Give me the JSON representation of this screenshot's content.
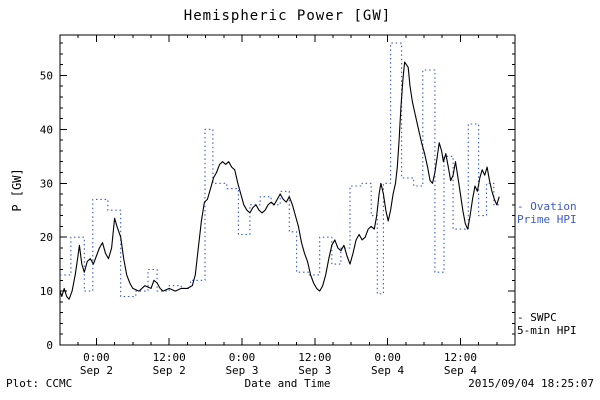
{
  "footer": {
    "plot_credit": "Plot: CCMC",
    "timestamp": "2015/09/04 18:25:07"
  },
  "chart_data": {
    "type": "line",
    "title": "Hemispheric Power [GW]",
    "xlabel": "Date and Time",
    "ylabel": "P [GW]",
    "x_unit": "hours since 2015-09-01 18:00 UT",
    "xlim": [
      0,
      75
    ],
    "ylim": [
      0,
      57.5
    ],
    "grid": false,
    "y_ticks": [
      0,
      10,
      20,
      30,
      40,
      50
    ],
    "y_minor": 2,
    "x_minor": 3,
    "x_ticks": [
      {
        "t": 6,
        "line1": "0:00",
        "line2": "Sep 2"
      },
      {
        "t": 18,
        "line1": "12:00",
        "line2": "Sep 2"
      },
      {
        "t": 30,
        "line1": "0:00",
        "line2": "Sep 3"
      },
      {
        "t": 42,
        "line1": "12:00",
        "line2": "Sep 3"
      },
      {
        "t": 54,
        "line1": "0:00",
        "line2": "Sep 4"
      },
      {
        "t": 66,
        "line1": "12:00",
        "line2": "Sep 4"
      }
    ],
    "legend": [
      {
        "line1": "- Ovation",
        "line2": "Prime HPI",
        "color": "#3b5bc8",
        "position": "right-middle"
      },
      {
        "line1": "- SWPC",
        "line2": "5-min HPI",
        "color": "#000000",
        "position": "right-bottom"
      }
    ],
    "series": [
      {
        "id": "ovation-prime-hpi",
        "name": "Ovation Prime HPI",
        "color": "#3b5bc8",
        "style": "dotted",
        "step": true,
        "dash": "1.5 2.8",
        "points": [
          [
            0,
            13
          ],
          [
            1.8,
            20
          ],
          [
            4,
            10
          ],
          [
            5.4,
            27
          ],
          [
            7.9,
            25
          ],
          [
            10,
            9
          ],
          [
            12.5,
            10
          ],
          [
            14.5,
            14
          ],
          [
            16,
            10
          ],
          [
            18,
            11
          ],
          [
            20,
            10.5
          ],
          [
            21.5,
            12
          ],
          [
            23.9,
            40
          ],
          [
            25.2,
            30
          ],
          [
            27.5,
            29
          ],
          [
            29.4,
            20.5
          ],
          [
            31.3,
            26
          ],
          [
            33,
            27.5
          ],
          [
            34.8,
            26
          ],
          [
            36.3,
            28.5
          ],
          [
            37.8,
            21
          ],
          [
            39,
            13.5
          ],
          [
            41,
            13
          ],
          [
            42.8,
            20
          ],
          [
            44.8,
            15
          ],
          [
            46.3,
            18
          ],
          [
            47.8,
            29.5
          ],
          [
            49.8,
            30
          ],
          [
            51.3,
            24
          ],
          [
            52.3,
            9.5
          ],
          [
            53.3,
            30
          ],
          [
            54.5,
            56
          ],
          [
            56.3,
            31
          ],
          [
            58.3,
            29.5
          ],
          [
            59.8,
            51
          ],
          [
            61.8,
            13.5
          ],
          [
            63.3,
            35
          ],
          [
            64.8,
            21.5
          ],
          [
            67.3,
            41
          ],
          [
            69,
            24
          ],
          [
            70.3,
            30
          ],
          [
            71.5,
            26
          ],
          [
            72.4,
            26
          ]
        ]
      },
      {
        "id": "swpc-5min-hpi",
        "name": "SWPC 5-min HPI",
        "color": "#000000",
        "style": "solid",
        "step": false,
        "dash": "",
        "points": [
          [
            0,
            10
          ],
          [
            0.3,
            9
          ],
          [
            0.7,
            10.5
          ],
          [
            1.1,
            9
          ],
          [
            1.5,
            8.5
          ],
          [
            2,
            10
          ],
          [
            2.5,
            13
          ],
          [
            2.9,
            16
          ],
          [
            3.2,
            18.5
          ],
          [
            3.6,
            15
          ],
          [
            4,
            13.5
          ],
          [
            4.5,
            15.5
          ],
          [
            5,
            16
          ],
          [
            5.5,
            15
          ],
          [
            6,
            16.5
          ],
          [
            6.5,
            18
          ],
          [
            7,
            19
          ],
          [
            7.5,
            17
          ],
          [
            8,
            16
          ],
          [
            8.5,
            18
          ],
          [
            9,
            23.5
          ],
          [
            9.4,
            22
          ],
          [
            10,
            20
          ],
          [
            10.5,
            16
          ],
          [
            11,
            13
          ],
          [
            11.5,
            11.5
          ],
          [
            12,
            10.5
          ],
          [
            13,
            10
          ],
          [
            14,
            11
          ],
          [
            15,
            10.5
          ],
          [
            15.5,
            12
          ],
          [
            16,
            11.5
          ],
          [
            16.5,
            10.5
          ],
          [
            17,
            10
          ],
          [
            18,
            10.5
          ],
          [
            19,
            10
          ],
          [
            20,
            10.5
          ],
          [
            21,
            10.5
          ],
          [
            21.8,
            11
          ],
          [
            22.3,
            13
          ],
          [
            22.8,
            18
          ],
          [
            23.3,
            23
          ],
          [
            23.8,
            26.5
          ],
          [
            24.3,
            27
          ],
          [
            24.8,
            29
          ],
          [
            25.3,
            31
          ],
          [
            25.8,
            32
          ],
          [
            26.3,
            33.5
          ],
          [
            26.8,
            34
          ],
          [
            27.3,
            33.5
          ],
          [
            27.8,
            34
          ],
          [
            28.3,
            33
          ],
          [
            28.8,
            32.5
          ],
          [
            29.3,
            30
          ],
          [
            29.8,
            28
          ],
          [
            30.3,
            26
          ],
          [
            30.8,
            25
          ],
          [
            31.3,
            24.5
          ],
          [
            31.8,
            25.5
          ],
          [
            32.3,
            26
          ],
          [
            32.8,
            25
          ],
          [
            33.3,
            24.5
          ],
          [
            33.8,
            25
          ],
          [
            34.3,
            26
          ],
          [
            34.8,
            26.5
          ],
          [
            35.3,
            26
          ],
          [
            35.8,
            27
          ],
          [
            36.3,
            28
          ],
          [
            36.8,
            27
          ],
          [
            37.3,
            26.5
          ],
          [
            37.8,
            27.5
          ],
          [
            38.3,
            26
          ],
          [
            38.8,
            24
          ],
          [
            39.3,
            22
          ],
          [
            39.8,
            19
          ],
          [
            40.3,
            17
          ],
          [
            40.8,
            15.5
          ],
          [
            41.3,
            13
          ],
          [
            41.8,
            11.5
          ],
          [
            42.3,
            10.5
          ],
          [
            42.8,
            10
          ],
          [
            43.3,
            11
          ],
          [
            43.8,
            13
          ],
          [
            44.3,
            16
          ],
          [
            44.8,
            18.5
          ],
          [
            45.3,
            19.5
          ],
          [
            45.8,
            18
          ],
          [
            46.3,
            17.5
          ],
          [
            46.8,
            18.5
          ],
          [
            47.3,
            16.5
          ],
          [
            47.8,
            15
          ],
          [
            48.3,
            17
          ],
          [
            48.8,
            19.5
          ],
          [
            49.3,
            20.5
          ],
          [
            49.8,
            19.5
          ],
          [
            50.3,
            20
          ],
          [
            50.8,
            21.5
          ],
          [
            51.3,
            22
          ],
          [
            51.8,
            21.5
          ],
          [
            52.2,
            24
          ],
          [
            52.6,
            28
          ],
          [
            52.9,
            30
          ],
          [
            53.3,
            28
          ],
          [
            53.7,
            25
          ],
          [
            54.1,
            23
          ],
          [
            54.5,
            25
          ],
          [
            54.9,
            28
          ],
          [
            55.3,
            30
          ],
          [
            55.6,
            33
          ],
          [
            55.9,
            38
          ],
          [
            56.2,
            44
          ],
          [
            56.5,
            49
          ],
          [
            56.8,
            52.5
          ],
          [
            57.1,
            52
          ],
          [
            57.4,
            51.5
          ],
          [
            57.7,
            48
          ],
          [
            58.1,
            45
          ],
          [
            58.6,
            42.5
          ],
          [
            59.1,
            40
          ],
          [
            59.6,
            37.5
          ],
          [
            60.1,
            35.5
          ],
          [
            60.6,
            33
          ],
          [
            61,
            30.5
          ],
          [
            61.4,
            30
          ],
          [
            61.8,
            32
          ],
          [
            62.2,
            35
          ],
          [
            62.5,
            37.5
          ],
          [
            62.9,
            36
          ],
          [
            63.2,
            34
          ],
          [
            63.6,
            35.5
          ],
          [
            64,
            33
          ],
          [
            64.4,
            30.5
          ],
          [
            64.8,
            31.5
          ],
          [
            65.2,
            34
          ],
          [
            65.6,
            31
          ],
          [
            66,
            28
          ],
          [
            66.4,
            25
          ],
          [
            66.8,
            22.5
          ],
          [
            67.2,
            21.5
          ],
          [
            67.6,
            24
          ],
          [
            68,
            27
          ],
          [
            68.4,
            29.5
          ],
          [
            68.8,
            28.5
          ],
          [
            69.2,
            31
          ],
          [
            69.6,
            32.5
          ],
          [
            70,
            31.5
          ],
          [
            70.4,
            33
          ],
          [
            70.8,
            30.5
          ],
          [
            71.2,
            28.5
          ],
          [
            71.6,
            27
          ],
          [
            72,
            26
          ],
          [
            72.4,
            27.5
          ]
        ]
      }
    ]
  }
}
